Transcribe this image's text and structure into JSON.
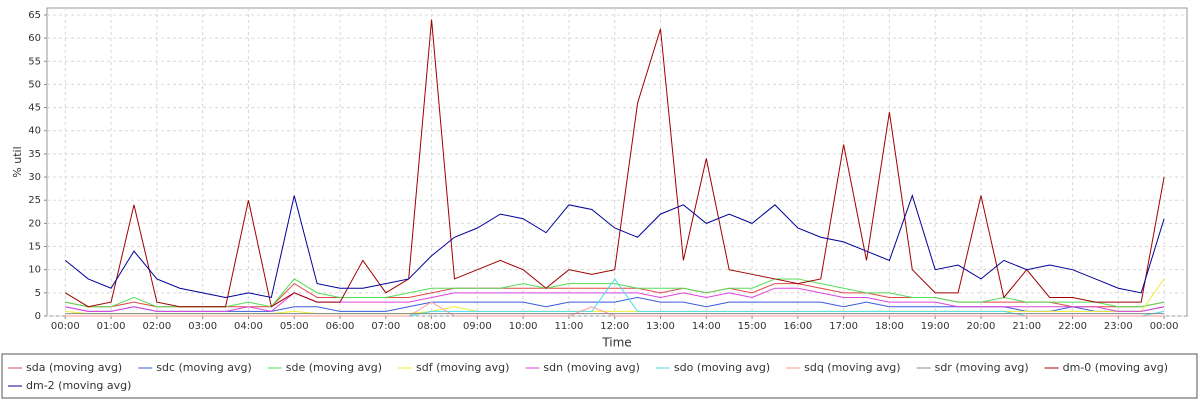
{
  "chart_data": {
    "type": "line",
    "x_label": "Time",
    "y_label": "% util",
    "x": [
      0,
      0.5,
      1,
      1.5,
      2,
      2.5,
      3,
      3.5,
      4,
      4.5,
      5,
      5.5,
      6,
      6.5,
      7,
      7.5,
      8,
      8.5,
      9,
      9.5,
      10,
      10.5,
      11,
      11.5,
      12,
      12.5,
      13,
      13.5,
      14,
      14.5,
      15,
      15.5,
      16,
      16.5,
      17,
      17.5,
      18,
      18.5,
      19,
      19.5,
      20,
      20.5,
      21,
      21.5,
      22,
      22.5,
      23,
      23.5,
      24
    ],
    "xlim": [
      -0.4,
      24.5
    ],
    "xticks": [
      {
        "value": 0,
        "label": "00:00"
      },
      {
        "value": 1,
        "label": "01:00"
      },
      {
        "value": 2,
        "label": "02:00"
      },
      {
        "value": 3,
        "label": "03:00"
      },
      {
        "value": 4,
        "label": "04:00"
      },
      {
        "value": 5,
        "label": "05:00"
      },
      {
        "value": 6,
        "label": "06:00"
      },
      {
        "value": 7,
        "label": "07:00"
      },
      {
        "value": 8,
        "label": "08:00"
      },
      {
        "value": 9,
        "label": "09:00"
      },
      {
        "value": 10,
        "label": "10:00"
      },
      {
        "value": 11,
        "label": "11:00"
      },
      {
        "value": 12,
        "label": "12:00"
      },
      {
        "value": 13,
        "label": "13:00"
      },
      {
        "value": 14,
        "label": "14:00"
      },
      {
        "value": 15,
        "label": "15:00"
      },
      {
        "value": 16,
        "label": "16:00"
      },
      {
        "value": 17,
        "label": "17:00"
      },
      {
        "value": 18,
        "label": "18:00"
      },
      {
        "value": 19,
        "label": "19:00"
      },
      {
        "value": 20,
        "label": "20:00"
      },
      {
        "value": 21,
        "label": "21:00"
      },
      {
        "value": 22,
        "label": "22:00"
      },
      {
        "value": 23,
        "label": "23:00"
      },
      {
        "value": 24,
        "label": "00:00"
      }
    ],
    "ylim": [
      0,
      66.5
    ],
    "yticks": [
      0,
      5,
      10,
      15,
      20,
      25,
      30,
      35,
      40,
      45,
      50,
      55,
      60,
      65
    ],
    "grid": true,
    "series": [
      {
        "name": "sda (moving avg)",
        "color": "#e04848",
        "values": [
          3,
          2,
          2,
          3,
          2,
          2,
          2,
          2,
          2,
          2,
          7,
          4,
          4,
          4,
          4,
          4,
          5,
          6,
          6,
          6,
          6,
          6,
          6,
          6,
          6,
          6,
          5,
          6,
          5,
          6,
          5,
          7,
          7,
          6,
          5,
          5,
          4,
          4,
          4,
          3,
          3,
          3,
          3,
          3,
          2,
          2,
          2,
          2,
          3
        ]
      },
      {
        "name": "sdc (moving avg)",
        "color": "#3a5ae0",
        "values": [
          2,
          1,
          1,
          2,
          1,
          1,
          1,
          1,
          1,
          1,
          2,
          2,
          1,
          1,
          1,
          2,
          3,
          3,
          3,
          3,
          3,
          2,
          3,
          3,
          3,
          4,
          3,
          3,
          2,
          3,
          3,
          3,
          3,
          3,
          2,
          3,
          2,
          2,
          2,
          2,
          2,
          2,
          1,
          1,
          2,
          1,
          1,
          1,
          2
        ]
      },
      {
        "name": "sde (moving avg)",
        "color": "#55dd55",
        "values": [
          3,
          2,
          2,
          4,
          2,
          2,
          2,
          2,
          3,
          2,
          8,
          5,
          4,
          4,
          4,
          5,
          6,
          6,
          6,
          6,
          7,
          6,
          7,
          7,
          7,
          6,
          6,
          6,
          5,
          6,
          6,
          8,
          8,
          7,
          6,
          5,
          5,
          4,
          4,
          3,
          3,
          4,
          3,
          3,
          3,
          3,
          2,
          2,
          3
        ]
      },
      {
        "name": "sdf (moving avg)",
        "color": "#eeee33",
        "values": [
          1,
          0.5,
          0.5,
          0.5,
          0.5,
          0.5,
          0.5,
          0.5,
          0.5,
          0.5,
          1,
          0.5,
          0.5,
          0.5,
          0.5,
          0.5,
          1,
          2,
          1,
          1,
          1,
          1,
          1,
          1,
          1,
          1,
          1,
          1,
          1,
          1,
          1,
          1,
          1,
          1,
          1,
          1,
          1,
          1,
          1,
          1,
          1,
          1,
          1,
          1,
          1,
          1,
          1,
          1,
          8
        ]
      },
      {
        "name": "sdn (moving avg)",
        "color": "#dd44dd",
        "values": [
          2,
          1,
          1,
          2,
          1,
          1,
          1,
          1,
          2,
          1,
          5,
          3,
          3,
          3,
          3,
          3,
          4,
          5,
          5,
          5,
          5,
          5,
          5,
          5,
          5,
          5,
          4,
          5,
          4,
          5,
          4,
          6,
          6,
          5,
          4,
          4,
          3,
          3,
          3,
          2,
          2,
          2,
          2,
          2,
          2,
          2,
          1,
          1,
          2
        ]
      },
      {
        "name": "sdo (moving avg)",
        "color": "#44ddee",
        "values": [
          0,
          0,
          0,
          0,
          0,
          0,
          0,
          0,
          0,
          0,
          0,
          0,
          0,
          0,
          0,
          0,
          1,
          1,
          1,
          1,
          1,
          1,
          1,
          1,
          8,
          1,
          1,
          1,
          1,
          1,
          1,
          1,
          1,
          1,
          1,
          1,
          1,
          1,
          1,
          1,
          1,
          1,
          0,
          0,
          0,
          0,
          0,
          0,
          1
        ]
      },
      {
        "name": "sdq (moving avg)",
        "color": "#ff9999",
        "values": [
          0,
          0,
          0,
          0,
          0,
          0,
          0,
          0,
          0,
          0,
          0,
          0,
          0,
          0,
          0,
          0,
          3,
          0,
          0,
          0,
          0,
          0,
          0,
          2,
          0,
          0,
          0,
          0,
          0,
          0,
          0,
          0,
          0,
          0,
          0,
          0,
          0,
          0,
          0,
          0,
          0,
          0,
          0,
          0,
          0,
          0,
          0,
          0,
          0
        ]
      },
      {
        "name": "sdr (moving avg)",
        "color": "#888888",
        "values": [
          0.5,
          0.5,
          0.5,
          0.5,
          0.5,
          0.5,
          0.5,
          0.5,
          0.5,
          0.5,
          0.5,
          0.5,
          0.5,
          0.5,
          0.5,
          0.5,
          0.5,
          0.5,
          0.5,
          0.5,
          0.5,
          0.5,
          0.5,
          0.5,
          0.5,
          0.5,
          0.5,
          0.5,
          0.5,
          0.5,
          0.5,
          0.5,
          0.5,
          0.5,
          0.5,
          0.5,
          0.5,
          0.5,
          0.5,
          0.5,
          0.5,
          0.5,
          0.5,
          0.5,
          0.5,
          0.5,
          0.5,
          0.5,
          0.5
        ]
      },
      {
        "name": "dm-0 (moving avg)",
        "color": "#a00000",
        "values": [
          5,
          2,
          3,
          24,
          3,
          2,
          2,
          2,
          25,
          2,
          5,
          3,
          3,
          12,
          5,
          8,
          64,
          8,
          10,
          12,
          10,
          6,
          10,
          9,
          10,
          46,
          62,
          12,
          34,
          10,
          9,
          8,
          7,
          8,
          37,
          12,
          44,
          10,
          5,
          5,
          26,
          4,
          10,
          4,
          4,
          3,
          3,
          3,
          30
        ]
      },
      {
        "name": "dm-2 (moving avg)",
        "color": "#000099",
        "values": [
          12,
          8,
          6,
          14,
          8,
          6,
          5,
          4,
          5,
          4,
          26,
          7,
          6,
          6,
          7,
          8,
          13,
          17,
          19,
          22,
          21,
          18,
          24,
          23,
          19,
          17,
          22,
          24,
          20,
          22,
          20,
          24,
          19,
          17,
          16,
          14,
          12,
          26,
          10,
          11,
          8,
          12,
          10,
          11,
          10,
          8,
          6,
          5,
          21
        ]
      }
    ]
  }
}
